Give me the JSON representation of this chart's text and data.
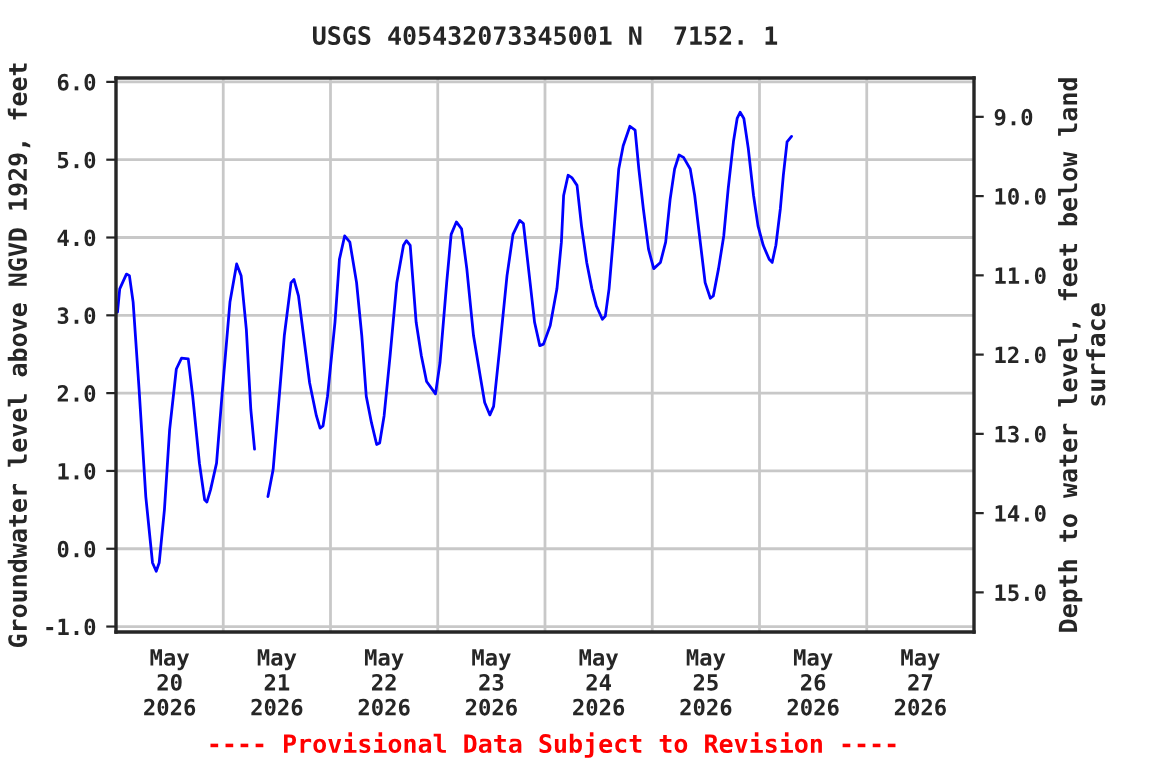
{
  "chart_data": {
    "type": "line",
    "title": "USGS 405432073345001 N  7152. 1",
    "ylabel": "Groundwater level above NGVD 1929, feet",
    "y2label": "Depth to water level, feet below land\nsurface",
    "annotations": [
      "---- Provisional Data Subject to Revision ----"
    ],
    "grid": true,
    "legend": false,
    "marker": "none",
    "line_style": "solid",
    "xlim": [
      "2026-05-20T00:00",
      "2026-05-28T00:00"
    ],
    "xticks": [
      {
        "value": "2026-05-20T12:00",
        "label": "May\n20\n2026"
      },
      {
        "value": "2026-05-21T12:00",
        "label": "May\n21\n2026"
      },
      {
        "value": "2026-05-22T12:00",
        "label": "May\n22\n2026"
      },
      {
        "value": "2026-05-23T12:00",
        "label": "May\n23\n2026"
      },
      {
        "value": "2026-05-24T12:00",
        "label": "May\n24\n2026"
      },
      {
        "value": "2026-05-25T12:00",
        "label": "May\n25\n2026"
      },
      {
        "value": "2026-05-26T12:00",
        "label": "May\n26\n2026"
      },
      {
        "value": "2026-05-27T12:00",
        "label": "May\n27\n2026"
      },
      {
        "value": "2026-05-21T00:00",
        "label": null
      },
      {
        "value": "2026-05-22T00:00",
        "label": null
      },
      {
        "value": "2026-05-23T00:00",
        "label": null
      },
      {
        "value": "2026-05-24T00:00",
        "label": null
      },
      {
        "value": "2026-05-25T00:00",
        "label": null
      },
      {
        "value": "2026-05-26T00:00",
        "label": null
      },
      {
        "value": "2026-05-27T00:00",
        "label": null
      }
    ],
    "ylim": [
      -1.07,
      6.05
    ],
    "yticks": [
      {
        "value": -1,
        "label": "-1.0"
      },
      {
        "value": 0,
        "label": "0.0"
      },
      {
        "value": 1,
        "label": "1.0"
      },
      {
        "value": 2,
        "label": "2.0"
      },
      {
        "value": 3,
        "label": "3.0"
      },
      {
        "value": 4,
        "label": "4.0"
      },
      {
        "value": 5,
        "label": "5.0"
      },
      {
        "value": 6,
        "label": "6.0"
      }
    ],
    "y2lim": [
      15.5,
      8.51
    ],
    "y2ticks": [
      {
        "value": 9,
        "label": "9.0"
      },
      {
        "value": 10,
        "label": "10.0"
      },
      {
        "value": 11,
        "label": "11.0"
      },
      {
        "value": 12,
        "label": "12.0"
      },
      {
        "value": 13,
        "label": "13.0"
      },
      {
        "value": 14,
        "label": "14.0"
      },
      {
        "value": 15,
        "label": "15.0"
      }
    ],
    "x": [
      "2026-05-20T00:20",
      "2026-05-20T00:50",
      "2026-05-20T02:20",
      "2026-05-20T03:00",
      "2026-05-20T03:50",
      "2026-05-20T05:10",
      "2026-05-20T06:40",
      "2026-05-20T08:10",
      "2026-05-20T09:00",
      "2026-05-20T09:40",
      "2026-05-20T10:50",
      "2026-05-20T12:00",
      "2026-05-20T13:30",
      "2026-05-20T14:40",
      "2026-05-20T16:10",
      "2026-05-20T17:10",
      "2026-05-20T18:40",
      "2026-05-20T19:50",
      "2026-05-20T20:20",
      "2026-05-20T21:10",
      "2026-05-20T22:30",
      "2026-05-20T23:50",
      "2026-05-21T01:30",
      "2026-05-21T03:00",
      "2026-05-21T04:00",
      "2026-05-21T05:10",
      "2026-05-21T06:10",
      "2026-05-21T07:00",
      "2026-05-21T08:30",
      "2026-05-21T10:00",
      "2026-05-21T11:10",
      "2026-05-21T12:40",
      "2026-05-21T13:40",
      "2026-05-21T15:10",
      "2026-05-21T15:50",
      "2026-05-21T16:50",
      "2026-05-21T18:10",
      "2026-05-21T19:20",
      "2026-05-21T20:50",
      "2026-05-21T21:40",
      "2026-05-21T22:20",
      "2026-05-21T23:20",
      "2026-05-22T01:00",
      "2026-05-22T02:00",
      "2026-05-22T03:10",
      "2026-05-22T04:20",
      "2026-05-22T05:50",
      "2026-05-22T07:00",
      "2026-05-22T08:00",
      "2026-05-22T09:10",
      "2026-05-22T10:20",
      "2026-05-22T11:00",
      "2026-05-22T12:00",
      "2026-05-22T13:20",
      "2026-05-22T14:50",
      "2026-05-22T16:20",
      "2026-05-22T17:00",
      "2026-05-22T17:50",
      "2026-05-22T19:10",
      "2026-05-22T20:20",
      "2026-05-22T21:30",
      "2026-05-22T23:30",
      "2026-05-23T00:30",
      "2026-05-23T02:00",
      "2026-05-23T03:00",
      "2026-05-23T04:10",
      "2026-05-23T05:20",
      "2026-05-23T06:30",
      "2026-05-23T08:00",
      "2026-05-23T09:30",
      "2026-05-23T10:30",
      "2026-05-23T11:40",
      "2026-05-23T12:30",
      "2026-05-23T13:50",
      "2026-05-23T15:30",
      "2026-05-23T16:50",
      "2026-05-23T18:20",
      "2026-05-23T19:10",
      "2026-05-23T20:40",
      "2026-05-23T21:40",
      "2026-05-23T22:50",
      "2026-05-23T23:40",
      "2026-05-24T01:10",
      "2026-05-24T02:40",
      "2026-05-24T03:40",
      "2026-05-24T04:10",
      "2026-05-24T05:10",
      "2026-05-24T06:00",
      "2026-05-24T07:10",
      "2026-05-24T08:10",
      "2026-05-24T09:20",
      "2026-05-24T10:30",
      "2026-05-24T11:30",
      "2026-05-24T12:50",
      "2026-05-24T13:30",
      "2026-05-24T14:20",
      "2026-05-24T15:20",
      "2026-05-24T16:30",
      "2026-05-24T17:30",
      "2026-05-24T19:00",
      "2026-05-24T20:10",
      "2026-05-24T21:00",
      "2026-05-24T22:00",
      "2026-05-24T23:10",
      "2026-05-25T00:20",
      "2026-05-25T01:50",
      "2026-05-25T03:00",
      "2026-05-25T04:00",
      "2026-05-25T05:00",
      "2026-05-25T06:00",
      "2026-05-25T07:00",
      "2026-05-25T08:30",
      "2026-05-25T09:30",
      "2026-05-25T10:40",
      "2026-05-25T11:50",
      "2026-05-25T13:00",
      "2026-05-25T13:40",
      "2026-05-25T14:50",
      "2026-05-25T16:00",
      "2026-05-25T17:00",
      "2026-05-25T18:10",
      "2026-05-25T19:00",
      "2026-05-25T19:40",
      "2026-05-25T20:30",
      "2026-05-25T21:30",
      "2026-05-25T22:40",
      "2026-05-25T23:40",
      "2026-05-26T00:50",
      "2026-05-26T02:10",
      "2026-05-26T02:50",
      "2026-05-26T03:40",
      "2026-05-26T04:40",
      "2026-05-26T05:20",
      "2026-05-26T06:10",
      "2026-05-26T07:10"
    ],
    "series": [
      {
        "color": "#0000ff",
        "values": [
          3.04,
          3.34,
          3.53,
          3.51,
          3.17,
          2.05,
          0.67,
          -0.18,
          -0.29,
          -0.18,
          0.5,
          1.53,
          2.31,
          2.45,
          2.44,
          1.96,
          1.1,
          0.63,
          0.6,
          0.76,
          1.1,
          2.05,
          3.17,
          3.66,
          3.51,
          2.82,
          1.79,
          1.28,
          null,
          0.67,
          1.02,
          2.05,
          2.74,
          3.42,
          3.46,
          3.25,
          2.65,
          2.13,
          1.71,
          1.55,
          1.58,
          1.96,
          2.91,
          3.72,
          4.02,
          3.94,
          3.42,
          2.74,
          1.96,
          1.62,
          1.34,
          1.36,
          1.71,
          2.48,
          3.42,
          3.9,
          3.96,
          3.9,
          2.91,
          2.48,
          2.15,
          1.99,
          2.39,
          3.42,
          4.04,
          4.2,
          4.11,
          3.6,
          2.74,
          2.22,
          1.88,
          1.72,
          1.83,
          2.56,
          3.51,
          4.04,
          4.22,
          4.18,
          3.42,
          2.91,
          2.61,
          2.63,
          2.87,
          3.34,
          3.94,
          4.54,
          4.8,
          4.77,
          4.67,
          4.15,
          3.68,
          3.34,
          3.12,
          2.95,
          2.99,
          3.34,
          4.02,
          4.88,
          5.18,
          5.43,
          5.38,
          4.88,
          4.37,
          3.85,
          3.6,
          3.68,
          3.94,
          4.49,
          4.88,
          5.06,
          5.03,
          4.88,
          4.54,
          3.98,
          3.42,
          3.22,
          3.25,
          3.6,
          4.02,
          4.63,
          5.23,
          5.53,
          5.61,
          5.53,
          5.14,
          4.54,
          4.15,
          3.9,
          3.72,
          3.68,
          3.9,
          4.37,
          4.8,
          5.23,
          5.3
        ]
      }
    ]
  }
}
